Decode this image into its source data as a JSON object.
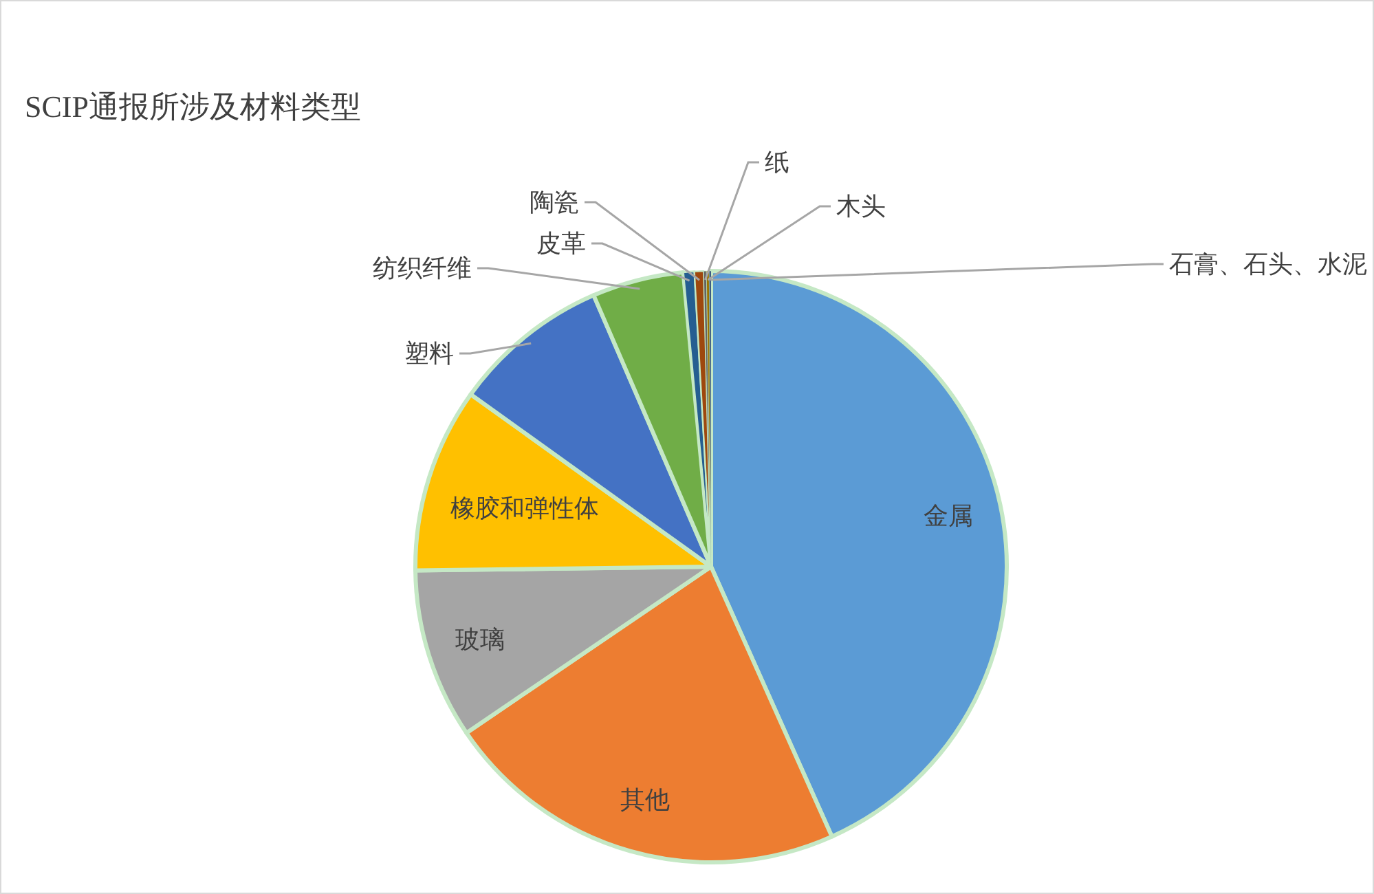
{
  "chart_data": {
    "type": "pie",
    "title": "SCIP通报所涉及材料类型",
    "categories": [
      "金属",
      "其他",
      "玻璃",
      "橡胶和弹性体",
      "塑料",
      "纺织纤维",
      "皮革",
      "陶瓷",
      "纸",
      "木头",
      "石膏、石头、水泥"
    ],
    "values": [
      43.3,
      22.2,
      9.3,
      10.1,
      8.6,
      5.0,
      0.6,
      0.5,
      0.15,
      0.15,
      0.1
    ],
    "colors": [
      "#5b9bd5",
      "#ed7d31",
      "#a5a5a5",
      "#ffc000",
      "#4472c4",
      "#70ad47",
      "#255e91",
      "#9e480e",
      "#636363",
      "#997300",
      "#264478"
    ]
  }
}
